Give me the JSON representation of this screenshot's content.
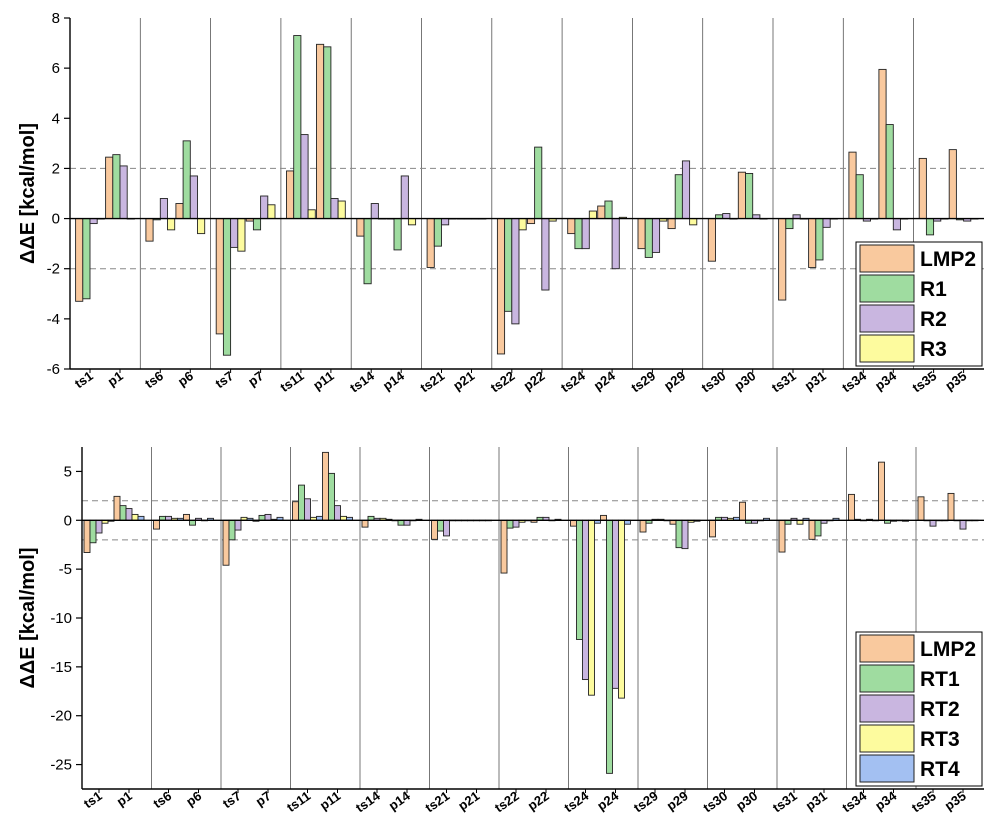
{
  "chart_data": [
    {
      "type": "bar",
      "ylabel": "ΔΔE [kcal/mol]",
      "ylim": [
        -6,
        8
      ],
      "yticks": [
        -6,
        -4,
        -2,
        0,
        2,
        4,
        6,
        8
      ],
      "reference_lines": [
        2,
        -2
      ],
      "groups": [
        "ts1/p1",
        "ts6/p6",
        "ts7/p7",
        "ts11/p11",
        "ts14/p14",
        "ts21/p21",
        "ts22/p22",
        "ts24/p24",
        "ts29/p29",
        "ts30/p30",
        "ts31/p31",
        "ts34/p34",
        "ts35/p35"
      ],
      "categories": [
        "ts1",
        "p1",
        "ts6",
        "p6",
        "ts7",
        "p7",
        "ts11",
        "p11",
        "ts14",
        "p14",
        "ts21",
        "p21",
        "ts22",
        "p22",
        "ts24",
        "p24",
        "ts29",
        "p29",
        "ts30",
        "p30",
        "ts31",
        "p31",
        "ts34",
        "p34",
        "ts35",
        "p35"
      ],
      "series": [
        {
          "name": "LMP2",
          "color": "#f9c99e",
          "values": [
            -3.3,
            2.45,
            -0.9,
            0.6,
            -4.6,
            -0.1,
            1.9,
            6.95,
            -0.7,
            0.0,
            -1.95,
            0.0,
            -5.4,
            -0.2,
            -0.6,
            0.5,
            -1.2,
            -0.4,
            -1.7,
            1.85,
            -3.25,
            -1.95,
            2.65,
            5.95,
            2.4,
            2.75
          ]
        },
        {
          "name": "R1",
          "color": "#9fdca0",
          "values": [
            -3.2,
            2.55,
            -0.05,
            3.1,
            -5.45,
            -0.45,
            7.3,
            6.85,
            -2.6,
            -1.25,
            -1.1,
            0.0,
            -3.7,
            2.85,
            -1.2,
            0.7,
            -1.55,
            1.75,
            0.15,
            1.8,
            -0.4,
            -1.65,
            1.75,
            3.75,
            -0.65,
            -0.05
          ]
        },
        {
          "name": "R2",
          "color": "#c9b6e0",
          "values": [
            -0.2,
            2.1,
            0.8,
            1.7,
            -1.15,
            0.9,
            3.35,
            0.8,
            0.6,
            1.7,
            -0.25,
            0.0,
            -4.2,
            -2.85,
            -1.2,
            -2.0,
            -1.35,
            2.3,
            0.2,
            0.15,
            0.15,
            -0.35,
            -0.1,
            -0.45,
            -0.1,
            -0.1
          ]
        },
        {
          "name": "R3",
          "color": "#fdfb9e",
          "values": [
            0.0,
            0.0,
            -0.45,
            -0.6,
            -1.3,
            0.55,
            0.35,
            0.7,
            0.0,
            -0.25,
            0.0,
            0.0,
            -0.45,
            -0.1,
            0.3,
            0.05,
            -0.1,
            -0.25,
            0.0,
            0.0,
            0.0,
            0.0,
            0.0,
            0.0,
            0.0,
            0.0
          ]
        }
      ],
      "legend": {
        "entries": [
          "LMP2",
          "R1",
          "R2",
          "R3"
        ],
        "position": "lower-right"
      }
    },
    {
      "type": "bar",
      "ylabel": "ΔΔE [kcal/mol]",
      "ylim": [
        -27.5,
        7.5
      ],
      "yticks": [
        -25,
        -20,
        -15,
        -10,
        -5,
        0,
        5
      ],
      "reference_lines": [
        2,
        -2
      ],
      "groups": [
        "ts1/p1",
        "ts6/p6",
        "ts7/p7",
        "ts11/p11",
        "ts14/p14",
        "ts21/p21",
        "ts22/p22",
        "ts24/p24",
        "ts29/p29",
        "ts30/p30",
        "ts31/p31",
        "ts34/p34",
        "ts35/p35"
      ],
      "categories": [
        "ts1",
        "p1",
        "ts6",
        "p6",
        "ts7",
        "p7",
        "ts11",
        "p11",
        "ts14",
        "p14",
        "ts21",
        "p21",
        "ts22",
        "p22",
        "ts24",
        "p24",
        "ts29",
        "p29",
        "ts30",
        "p30",
        "ts31",
        "p31",
        "ts34",
        "p34",
        "ts35",
        "p35"
      ],
      "series": [
        {
          "name": "LMP2",
          "color": "#f9c99e",
          "values": [
            -3.3,
            2.45,
            -0.9,
            0.6,
            -4.6,
            -0.1,
            1.9,
            6.95,
            -0.7,
            0.0,
            -1.95,
            0.0,
            -5.4,
            -0.2,
            -0.6,
            0.5,
            -1.2,
            -0.4,
            -1.7,
            1.85,
            -3.25,
            -1.95,
            2.65,
            5.95,
            2.4,
            2.75
          ]
        },
        {
          "name": "RT1",
          "color": "#9fdca0",
          "values": [
            -2.3,
            1.5,
            0.4,
            -0.5,
            -2.0,
            0.5,
            3.6,
            4.8,
            0.4,
            -0.5,
            -1.1,
            0.0,
            -0.8,
            0.3,
            -12.2,
            -25.9,
            -0.3,
            -2.8,
            0.3,
            -0.3,
            -0.4,
            -1.6,
            0.1,
            -0.3,
            0.0,
            0.0
          ]
        },
        {
          "name": "RT2",
          "color": "#c9b6e0",
          "values": [
            -1.3,
            1.2,
            0.4,
            0.2,
            -1.0,
            0.6,
            2.2,
            1.5,
            0.2,
            -0.5,
            -1.6,
            0.0,
            -0.7,
            0.3,
            -16.3,
            -17.2,
            0.1,
            -2.9,
            0.3,
            -0.3,
            0.2,
            -0.3,
            0.0,
            -0.1,
            -0.6,
            -0.9
          ]
        },
        {
          "name": "RT3",
          "color": "#fdfb9e",
          "values": [
            -0.3,
            0.6,
            0.2,
            0.0,
            0.3,
            0.1,
            0.3,
            0.4,
            0.2,
            0.0,
            0.0,
            0.0,
            -0.2,
            0.0,
            -17.9,
            -18.2,
            0.1,
            -0.2,
            0.2,
            0.0,
            -0.4,
            0.0,
            0.1,
            0.0,
            0.0,
            0.0
          ]
        },
        {
          "name": "RT4",
          "color": "#a3c0f2",
          "values": [
            -0.1,
            0.4,
            0.2,
            0.2,
            0.2,
            0.3,
            0.4,
            0.3,
            0.1,
            0.1,
            0.0,
            0.0,
            0.0,
            0.1,
            -0.3,
            -0.4,
            0.0,
            -0.1,
            0.3,
            0.2,
            0.2,
            0.2,
            0.0,
            -0.1,
            0.0,
            0.0
          ]
        }
      ],
      "legend": {
        "entries": [
          "LMP2",
          "RT1",
          "RT2",
          "RT3",
          "RT4"
        ],
        "position": "lower-right"
      }
    }
  ]
}
